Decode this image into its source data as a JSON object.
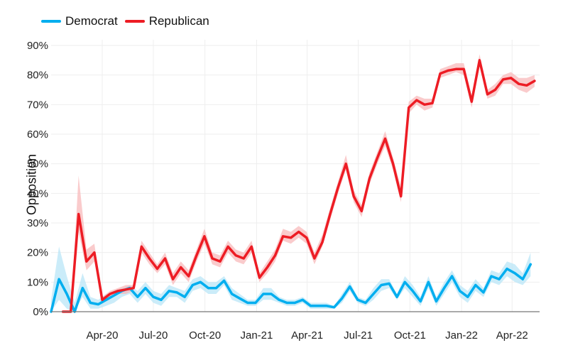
{
  "colors": {
    "democrat": "#00AEEF",
    "democrat_band": "#B9E6F7",
    "republican": "#ED1C24",
    "republican_band": "#F8B9BB",
    "grid": "#EEEEEE",
    "axis": "#777777"
  },
  "legend": [
    {
      "name": "Democrat",
      "color": "#00AEEF"
    },
    {
      "name": "Republican",
      "color": "#ED1C24"
    }
  ],
  "chart_data": {
    "type": "line",
    "ylabel": "Opposition",
    "xlabel": "",
    "ylim": [
      0,
      90
    ],
    "yticks": [
      "0%",
      "10%",
      "20%",
      "30%",
      "40%",
      "50%",
      "60%",
      "70%",
      "80%",
      "90%"
    ],
    "xlim": [
      "2020-01-01",
      "2022-05-20"
    ],
    "xticks": [
      {
        "label": "Apr-20",
        "date": "2020-04-01"
      },
      {
        "label": "Jul-20",
        "date": "2020-07-01"
      },
      {
        "label": "Oct-20",
        "date": "2020-10-01"
      },
      {
        "label": "Jan-21",
        "date": "2021-01-01"
      },
      {
        "label": "Apr-21",
        "date": "2021-04-01"
      },
      {
        "label": "Jul-21",
        "date": "2021-07-01"
      },
      {
        "label": "Oct-21",
        "date": "2021-10-01"
      },
      {
        "label": "Jan-22",
        "date": "2022-01-01"
      },
      {
        "label": "Apr-22",
        "date": "2022-04-01"
      }
    ],
    "grid": true,
    "legend_position": "top-left",
    "series": [
      {
        "name": "Democrat",
        "color": "#00AEEF",
        "points": [
          [
            "2020-01-01",
            0,
            0,
            4
          ],
          [
            "2020-01-15",
            11,
            4,
            22
          ],
          [
            "2020-01-29",
            6,
            1,
            12
          ],
          [
            "2020-02-12",
            0,
            0,
            3
          ],
          [
            "2020-02-26",
            8,
            5,
            13
          ],
          [
            "2020-03-11",
            3,
            1,
            5
          ],
          [
            "2020-03-25",
            2.5,
            1,
            4
          ],
          [
            "2020-04-08",
            4,
            2,
            6
          ],
          [
            "2020-04-22",
            5.5,
            3,
            7
          ],
          [
            "2020-05-06",
            7,
            5,
            8
          ],
          [
            "2020-05-20",
            8,
            6,
            9
          ],
          [
            "2020-06-03",
            5,
            3,
            7
          ],
          [
            "2020-06-17",
            8,
            6,
            10
          ],
          [
            "2020-07-01",
            5,
            3,
            7
          ],
          [
            "2020-07-15",
            4,
            2,
            6
          ],
          [
            "2020-07-29",
            7,
            5,
            9
          ],
          [
            "2020-08-12",
            6.5,
            5,
            8
          ],
          [
            "2020-08-26",
            5,
            3,
            7
          ],
          [
            "2020-09-09",
            9,
            7,
            11
          ],
          [
            "2020-09-23",
            10,
            8,
            12
          ],
          [
            "2020-10-07",
            8,
            6,
            10
          ],
          [
            "2020-10-21",
            8,
            6,
            10
          ],
          [
            "2020-11-04",
            10.5,
            9,
            12
          ],
          [
            "2020-11-18",
            6,
            4,
            8
          ],
          [
            "2020-12-02",
            4.5,
            3,
            6
          ],
          [
            "2020-12-16",
            3,
            2,
            4
          ],
          [
            "2020-12-30",
            3,
            2,
            4
          ],
          [
            "2021-01-13",
            6,
            4,
            8
          ],
          [
            "2021-01-27",
            6,
            4,
            8
          ],
          [
            "2021-02-10",
            4,
            3,
            5
          ],
          [
            "2021-02-24",
            3,
            2,
            4
          ],
          [
            "2021-03-10",
            3,
            2,
            4
          ],
          [
            "2021-03-24",
            4,
            3,
            5
          ],
          [
            "2021-04-07",
            2,
            1,
            3
          ],
          [
            "2021-04-21",
            2,
            1,
            3
          ],
          [
            "2021-05-05",
            2,
            1,
            3
          ],
          [
            "2021-05-19",
            1.5,
            1,
            2
          ],
          [
            "2021-06-02",
            4.5,
            3,
            6
          ],
          [
            "2021-06-16",
            8.5,
            7,
            10
          ],
          [
            "2021-06-30",
            4,
            3,
            5
          ],
          [
            "2021-07-14",
            3,
            2,
            4
          ],
          [
            "2021-07-28",
            6,
            4,
            8
          ],
          [
            "2021-08-11",
            9,
            7,
            11
          ],
          [
            "2021-08-25",
            9.5,
            8,
            11
          ],
          [
            "2021-09-08",
            5,
            4,
            6
          ],
          [
            "2021-09-22",
            10,
            8,
            12
          ],
          [
            "2021-10-06",
            7,
            5,
            9
          ],
          [
            "2021-10-20",
            3.5,
            2,
            5
          ],
          [
            "2021-11-03",
            10,
            8,
            12
          ],
          [
            "2021-11-17",
            3.5,
            2,
            5
          ],
          [
            "2021-12-01",
            8,
            6,
            10
          ],
          [
            "2021-12-15",
            12,
            10,
            14
          ],
          [
            "2021-12-29",
            7,
            5,
            9
          ],
          [
            "2022-01-12",
            5,
            3,
            7
          ],
          [
            "2022-01-26",
            9,
            7,
            11
          ],
          [
            "2022-02-09",
            6.5,
            5,
            8
          ],
          [
            "2022-02-23",
            12,
            10,
            14
          ],
          [
            "2022-03-09",
            11,
            9,
            13
          ],
          [
            "2022-03-23",
            14.5,
            12,
            17
          ],
          [
            "2022-04-06",
            13,
            10,
            16
          ],
          [
            "2022-04-20",
            11,
            9,
            13
          ],
          [
            "2022-05-04",
            16,
            12,
            20
          ]
        ]
      },
      {
        "name": "Republican",
        "color": "#ED1C24",
        "points": [
          [
            "2020-01-22",
            0,
            0,
            0
          ],
          [
            "2020-02-05",
            0,
            0,
            0
          ],
          [
            "2020-02-19",
            33,
            27,
            46
          ],
          [
            "2020-03-04",
            17,
            14,
            21
          ],
          [
            "2020-03-18",
            20,
            17,
            23
          ],
          [
            "2020-04-01",
            4,
            3,
            5
          ],
          [
            "2020-04-15",
            6,
            5,
            7
          ],
          [
            "2020-04-29",
            7,
            6,
            8
          ],
          [
            "2020-05-13",
            7.5,
            6,
            9
          ],
          [
            "2020-05-27",
            8,
            7,
            9
          ],
          [
            "2020-06-10",
            22,
            20,
            24
          ],
          [
            "2020-06-24",
            18,
            16,
            20
          ],
          [
            "2020-07-08",
            14.5,
            13,
            16
          ],
          [
            "2020-07-22",
            18,
            16,
            20
          ],
          [
            "2020-08-05",
            11,
            9,
            13
          ],
          [
            "2020-08-19",
            15,
            13,
            17
          ],
          [
            "2020-09-02",
            12,
            10,
            14
          ],
          [
            "2020-09-16",
            19,
            17,
            21
          ],
          [
            "2020-09-30",
            25.5,
            23,
            28
          ],
          [
            "2020-10-14",
            18,
            16,
            20
          ],
          [
            "2020-10-28",
            17,
            15,
            19
          ],
          [
            "2020-11-11",
            22,
            20,
            24
          ],
          [
            "2020-11-25",
            19,
            17,
            21
          ],
          [
            "2020-12-09",
            18,
            16,
            20
          ],
          [
            "2020-12-23",
            22,
            20,
            24
          ],
          [
            "2021-01-06",
            11.5,
            10,
            13
          ],
          [
            "2021-01-20",
            15,
            13,
            17
          ],
          [
            "2021-02-03",
            19,
            17,
            21
          ],
          [
            "2021-02-17",
            25.5,
            24,
            28
          ],
          [
            "2021-03-03",
            25,
            23,
            27
          ],
          [
            "2021-03-17",
            27,
            25,
            29
          ],
          [
            "2021-03-31",
            25,
            23,
            27
          ],
          [
            "2021-04-14",
            18,
            16,
            20
          ],
          [
            "2021-04-28",
            23.5,
            22,
            26
          ],
          [
            "2021-05-12",
            33,
            31,
            35
          ],
          [
            "2021-05-26",
            42,
            40,
            44
          ],
          [
            "2021-06-09",
            50,
            48,
            53
          ],
          [
            "2021-06-23",
            39,
            37,
            41
          ],
          [
            "2021-07-07",
            34,
            32,
            36
          ],
          [
            "2021-07-21",
            45,
            43,
            47
          ],
          [
            "2021-08-04",
            52,
            50,
            54
          ],
          [
            "2021-08-18",
            58.5,
            56,
            61
          ],
          [
            "2021-09-01",
            50,
            48,
            52
          ],
          [
            "2021-09-15",
            39,
            37,
            42
          ],
          [
            "2021-09-29",
            69,
            67,
            71
          ],
          [
            "2021-10-13",
            71.5,
            70,
            73
          ],
          [
            "2021-10-27",
            70,
            68,
            72
          ],
          [
            "2021-11-10",
            70.5,
            69,
            72
          ],
          [
            "2021-11-24",
            80.5,
            79,
            82
          ],
          [
            "2021-12-08",
            81.5,
            80,
            83
          ],
          [
            "2021-12-22",
            82,
            81,
            84
          ],
          [
            "2022-01-05",
            82,
            80,
            84
          ],
          [
            "2022-01-19",
            71,
            69,
            73
          ],
          [
            "2022-02-02",
            85,
            83,
            87
          ],
          [
            "2022-02-16",
            73.5,
            72,
            75
          ],
          [
            "2022-03-02",
            75,
            73,
            77
          ],
          [
            "2022-03-16",
            78.5,
            77,
            80
          ],
          [
            "2022-03-30",
            79,
            77,
            81
          ],
          [
            "2022-04-13",
            77,
            75,
            79
          ],
          [
            "2022-04-27",
            76.5,
            74,
            79
          ],
          [
            "2022-05-11",
            78,
            76,
            80
          ]
        ]
      }
    ]
  }
}
